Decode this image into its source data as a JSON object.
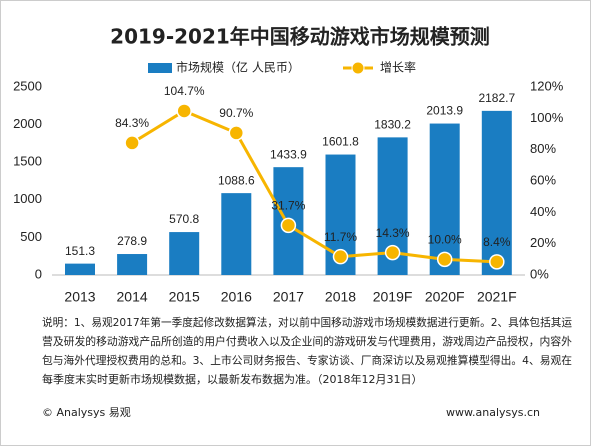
{
  "chart_data": {
    "type": "bar",
    "title": "2019-2021年中国移动游戏市场规模预测",
    "categories": [
      "2013",
      "2014",
      "2015",
      "2016",
      "2017",
      "2018",
      "2019F",
      "2020F",
      "2021F"
    ],
    "series": [
      {
        "name": "市场规模（亿 人民币）",
        "color": "#1a7dc2",
        "type": "bar",
        "values": [
          151.3,
          278.9,
          570.8,
          1088.6,
          1433.9,
          1601.8,
          1830.2,
          2013.9,
          2182.7
        ]
      },
      {
        "name": "增长率",
        "color": "#f7b500",
        "type": "line",
        "axis": "y2",
        "values": [
          null,
          84.3,
          104.7,
          90.7,
          31.7,
          11.7,
          14.3,
          10.0,
          8.4
        ],
        "value_labels": [
          null,
          "84.3%",
          "104.7%",
          "90.7%",
          "31.7%",
          "11.7%",
          "14.3%",
          "10.0%",
          "8.4%"
        ]
      }
    ],
    "ylim": [
      0,
      2500
    ],
    "yticks": [
      0,
      500,
      1000,
      1500,
      2000,
      2500
    ],
    "y2lim": [
      0,
      120
    ],
    "y2ticks": [
      {
        "value": 0,
        "label": "0%"
      },
      {
        "value": 20,
        "label": "20%"
      },
      {
        "value": 40,
        "label": "40%"
      },
      {
        "value": 60,
        "label": "60%"
      },
      {
        "value": 80,
        "label": "80%"
      },
      {
        "value": 100,
        "label": "100%"
      },
      {
        "value": 120,
        "label": "120%"
      }
    ],
    "grid": false,
    "note": [
      "说明：1、易观2017年第一季度起修改数据算法，对以前中国移动游戏市场规模数据进行更新。2、具体包括其运",
      "营及研发的移动游戏产品所创造的用户付费收入以及企业间的游戏研发与代理费用，游戏周边产品授权，内容外",
      "包与海外代理授权费用的总和。3、上市公司财务报告、专家访谈、厂商深访以及易观推算模型得出。4、易观在",
      "每季度末实时更新市场规模数据，以最新发布数据为准。（2018年12月31日）"
    ],
    "source": "© Analysys 易观",
    "website": "www.analysys.cn"
  }
}
